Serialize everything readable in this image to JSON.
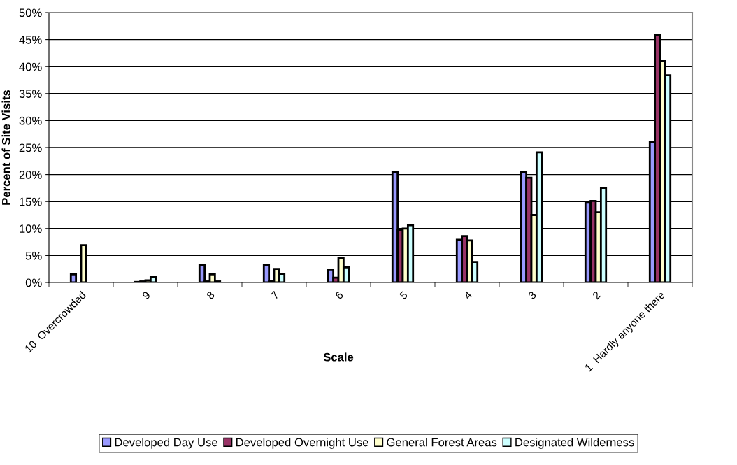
{
  "chart_data": {
    "type": "bar",
    "xlabel": "Scale",
    "ylabel": "Percent of Site Visits",
    "categories": [
      "10  Overcrowded",
      "9",
      "8",
      "7",
      "6",
      "5",
      "4",
      "3",
      "2",
      "1  Hardly anyone there"
    ],
    "series": [
      {
        "name": "Developed Day Use",
        "color": "#9999ff",
        "values": [
          1.5,
          0.1,
          3.3,
          3.3,
          2.4,
          20.4,
          7.9,
          20.5,
          14.8,
          26.0
        ]
      },
      {
        "name": "Developed Overnight Use",
        "color": "#993366",
        "values": [
          null,
          0.2,
          0.2,
          0.3,
          0.9,
          9.7,
          8.6,
          19.4,
          15.1,
          45.8
        ]
      },
      {
        "name": "General Forest Areas",
        "color": "#ffffcc",
        "values": [
          6.9,
          0.4,
          1.5,
          2.5,
          4.6,
          10.0,
          7.8,
          12.5,
          13.0,
          41.0
        ]
      },
      {
        "name": "Designated Wilderness",
        "color": "#ccffff",
        "values": [
          null,
          1.0,
          0.2,
          1.6,
          2.8,
          10.6,
          3.8,
          24.1,
          17.5,
          38.4
        ]
      }
    ],
    "ylim": [
      0,
      50
    ],
    "yticks": [
      {
        "value": 0,
        "label": "0%"
      },
      {
        "value": 5,
        "label": "5%"
      },
      {
        "value": 10,
        "label": "10%"
      },
      {
        "value": 15,
        "label": "15%"
      },
      {
        "value": 20,
        "label": "20%"
      },
      {
        "value": 25,
        "label": "25%"
      },
      {
        "value": 30,
        "label": "30%"
      },
      {
        "value": 35,
        "label": "35%"
      },
      {
        "value": 40,
        "label": "40%"
      },
      {
        "value": 45,
        "label": "45%"
      },
      {
        "value": 50,
        "label": "50%"
      }
    ],
    "grid": "y",
    "legend": "bottom"
  }
}
